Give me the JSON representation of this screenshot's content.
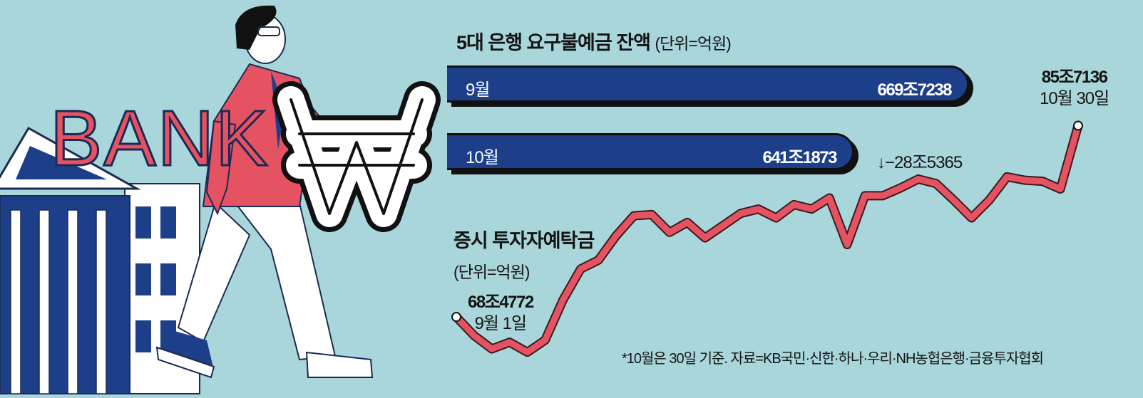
{
  "illustration": {
    "bank_sign": "BANK",
    "currency_symbol": "₩",
    "colors": {
      "jacket": "#e55362",
      "bank_blue": "#1d3f8a",
      "background": "#a9d6da"
    }
  },
  "title": {
    "text": "5대 은행 요구불예금 잔액",
    "unit": "(단위=억원)"
  },
  "deposit_bars": [
    {
      "label": "9월",
      "display": "669조7238",
      "value": 6697238
    },
    {
      "label": "10월",
      "display": "641조1873",
      "value": 6411873
    }
  ],
  "change_label": "↓−28조5365",
  "subchart": {
    "title": "증시 투자자예탁금",
    "unit": "(단위=억원)"
  },
  "start_annotation": {
    "value": "68조4772",
    "date": "9월 1일"
  },
  "end_annotation": {
    "value": "85조7136",
    "date": "10월 30일"
  },
  "footnote": "*10월은 30일 기준. 자료=KB국민·신한·하나·우리·NH농협은행·금융투자협회",
  "chart_data": [
    {
      "type": "bar",
      "title": "5대 은행 요구불예금 잔액",
      "unit": "(단위=억원)",
      "categories": [
        "9월",
        "10월"
      ],
      "values": [
        6697238,
        6411873
      ],
      "data_labels": [
        "669조7238",
        "641조1873"
      ],
      "annotation": "↓−28조5365",
      "bar_color": "#1d3f8a"
    },
    {
      "type": "line",
      "title": "증시 투자자예탁금",
      "unit": "(단위=억원)",
      "y_unit_note": "values in 조원",
      "x_range": [
        "9월 1일",
        "10월 30일"
      ],
      "values": [
        68.48,
        66.8,
        65.6,
        66.2,
        65.3,
        66.4,
        70.0,
        72.8,
        73.6,
        75.8,
        77.6,
        77.7,
        76.1,
        77.0,
        75.6,
        76.7,
        77.8,
        78.2,
        77.4,
        78.6,
        78.2,
        79.2,
        75.0,
        79.4,
        79.4,
        80.1,
        80.9,
        80.5,
        79.0,
        77.4,
        79.0,
        81.1,
        80.8,
        80.7,
        80.0,
        85.71
      ],
      "labeled_points": [
        {
          "index": 0,
          "label": "68조4772",
          "date": "9월 1일"
        },
        {
          "index": 35,
          "label": "85조7136",
          "date": "10월 30일"
        }
      ],
      "line_color": "#e55362"
    }
  ]
}
